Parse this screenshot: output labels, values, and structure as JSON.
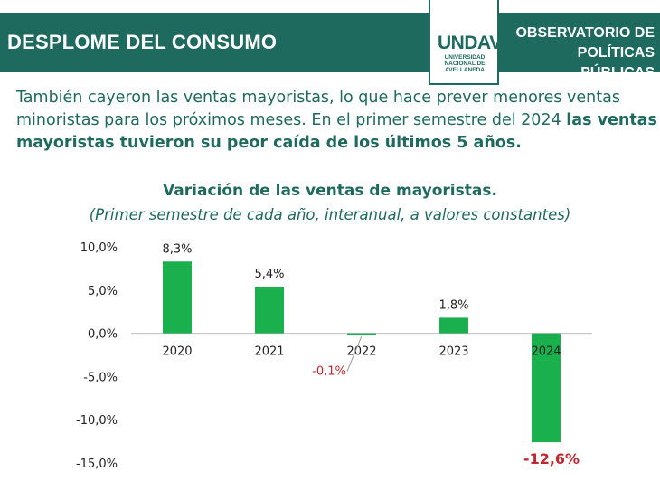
{
  "header": {
    "title": "DESPLOME DEL CONSUMO",
    "right_line1": "OBSERVATORIO DE",
    "right_line2": "POLÍTICAS PÚBLICAS"
  },
  "logo": {
    "mark": "UNDAV",
    "sub_line1": "UNIVERSIDAD",
    "sub_line2": "NACIONAL DE",
    "sub_line3": "AVELLANEDA"
  },
  "intro": {
    "plain": "También cayeron las ventas mayoristas, lo que hace prever menores ventas minoristas para los próximos meses. En el primer semestre del 2024",
    "bold": "las ventas mayoristas tuvieron su peor caída de los últimos 5 años."
  },
  "chart_data": {
    "type": "bar",
    "title": "Variación de las ventas de mayoristas.",
    "subtitle": "(Primer semestre de cada año, interanual, a valores constantes)",
    "categories": [
      "2020",
      "2021",
      "2022",
      "2023",
      "2024"
    ],
    "values": [
      8.3,
      5.4,
      -0.1,
      1.8,
      -12.6
    ],
    "value_labels": [
      "8,3%",
      "5,4%",
      "-0,1%",
      "1,8%",
      "-12,6%"
    ],
    "ylim": [
      -15,
      10
    ],
    "yticks": [
      10,
      5,
      0,
      -5,
      -10,
      -15
    ],
    "ytick_labels": [
      "10,0%",
      "5,0%",
      "0,0%",
      "-5,0%",
      "-10,0%",
      "-15,0%"
    ],
    "grid": false,
    "colors": {
      "bar": "#1bb04e",
      "negative_label": "#c0282d",
      "positive_label": "#222222",
      "axis": "#bfbfbf"
    }
  },
  "colors": {
    "brand": "#1f6a5e"
  }
}
